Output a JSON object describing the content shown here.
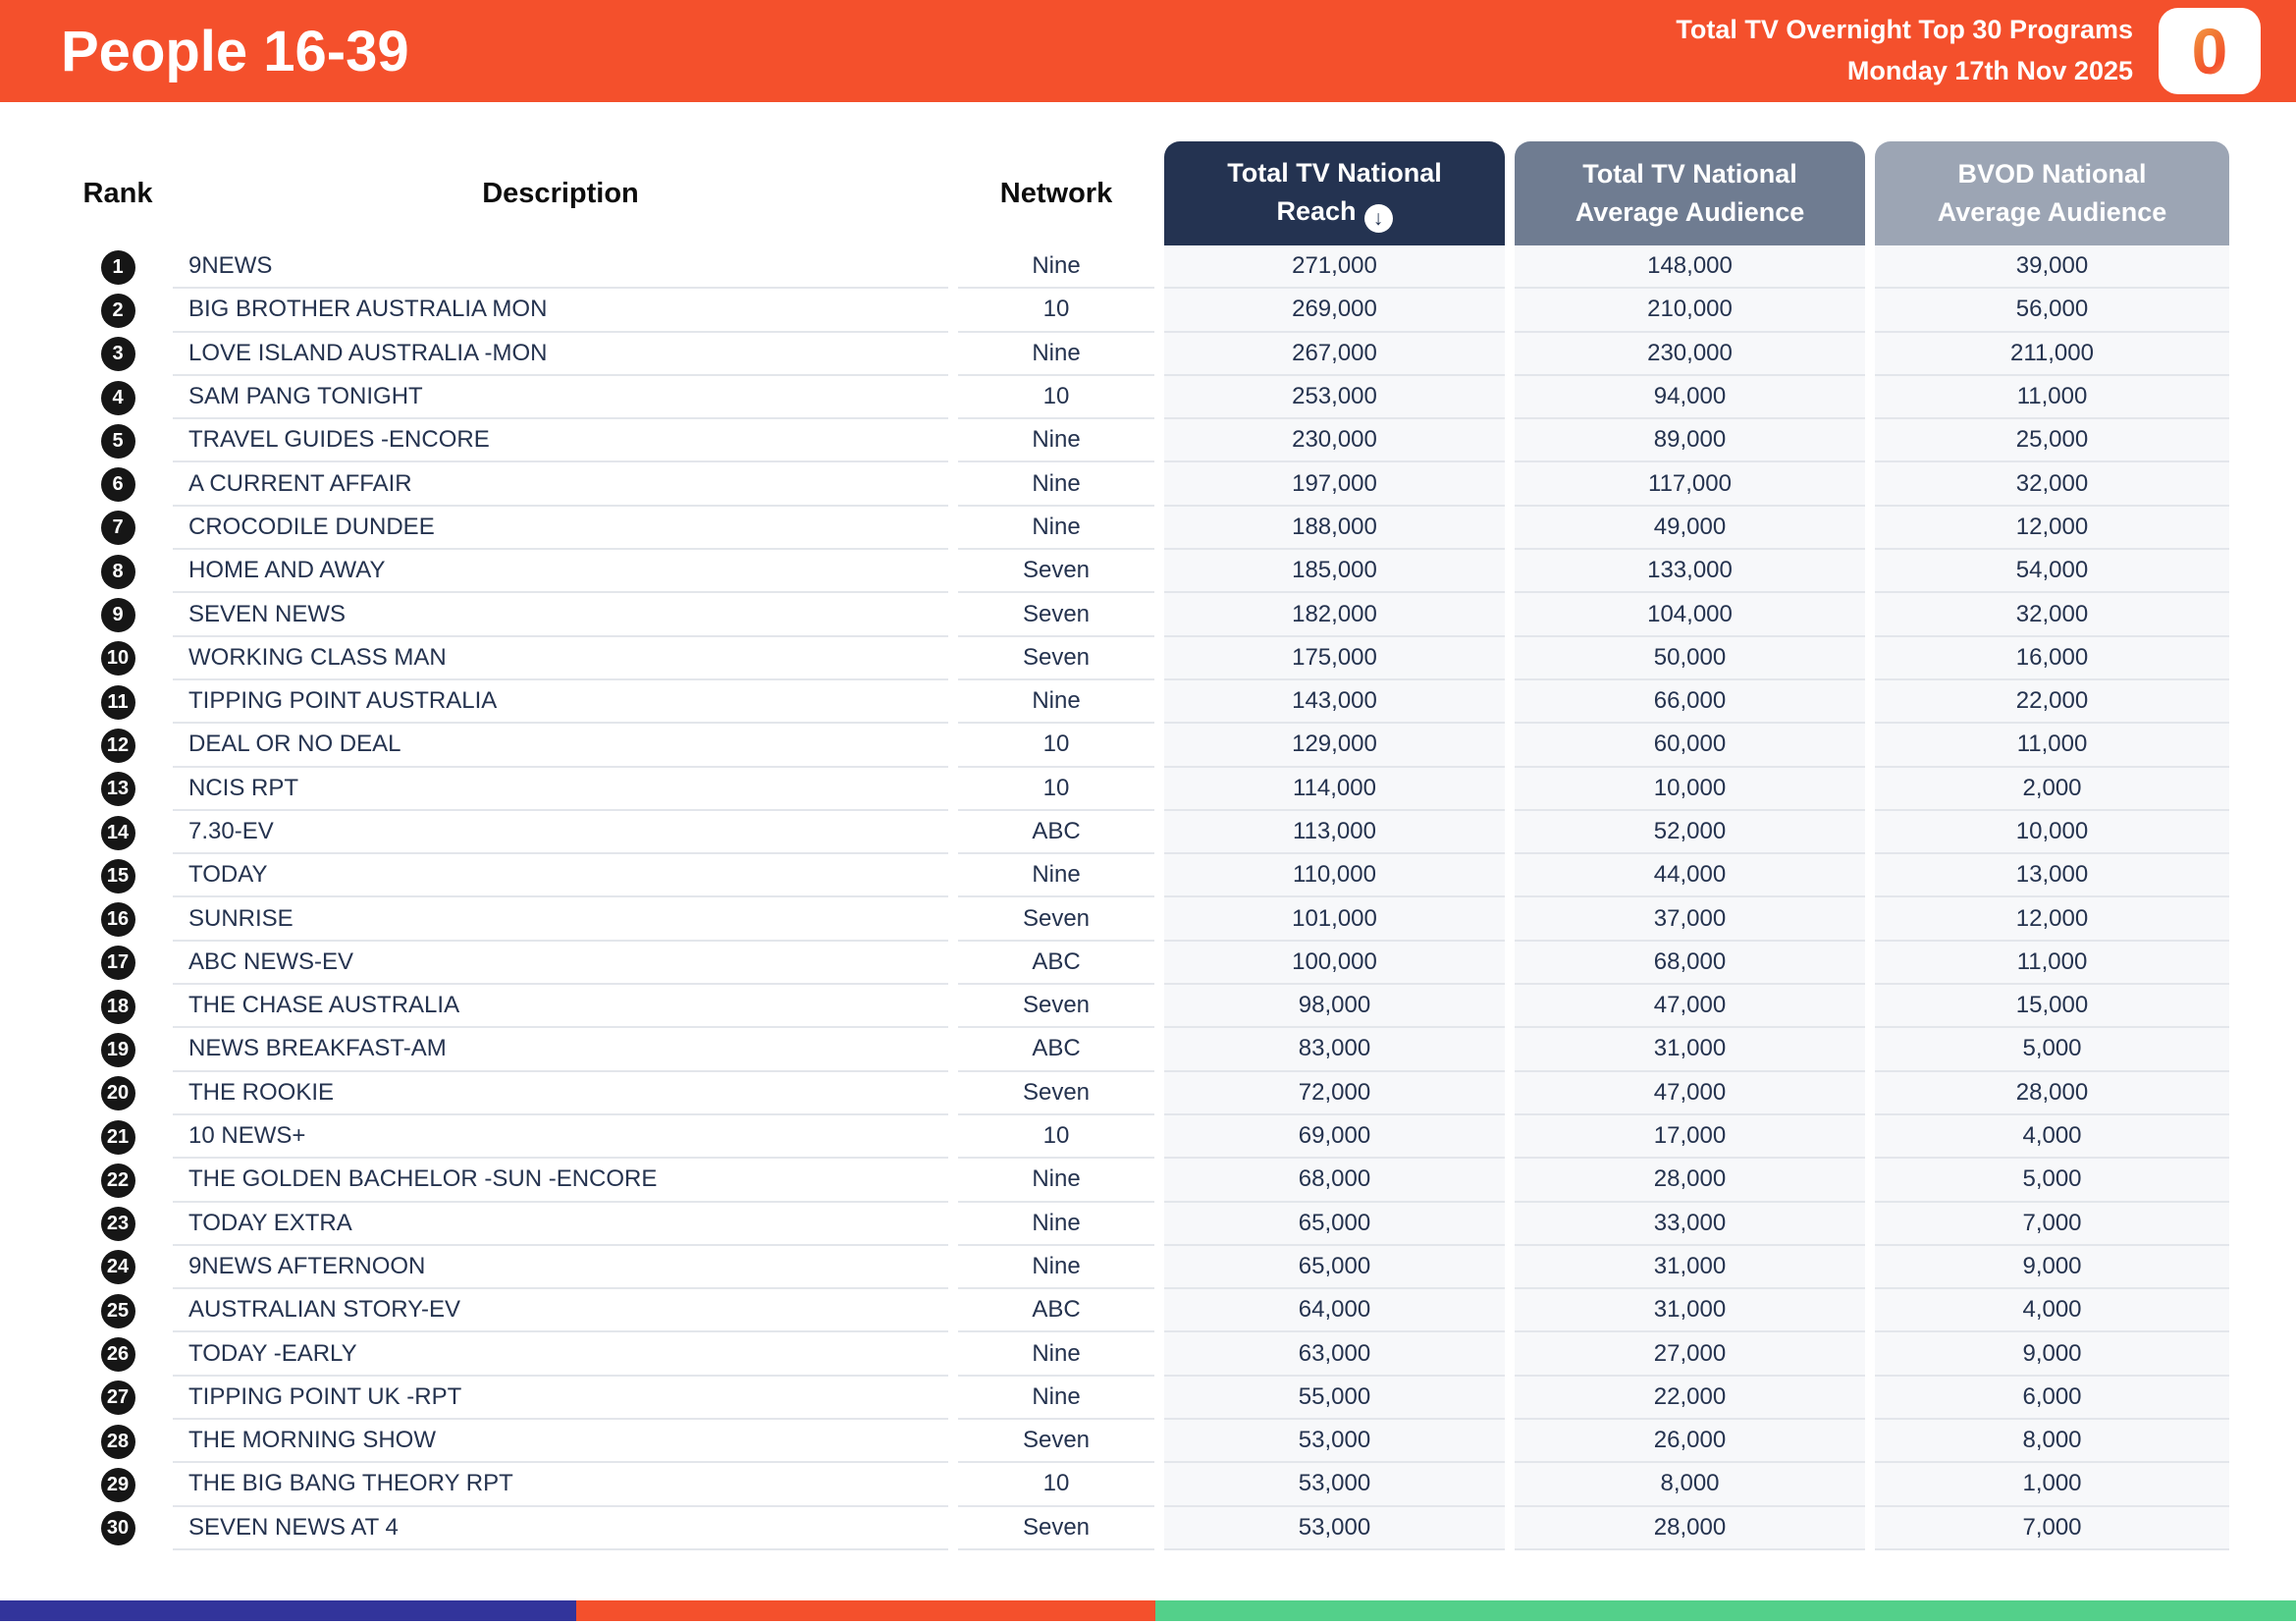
{
  "banner": {
    "title": "People 16-39",
    "subtitle_line1": "Total TV Overnight Top 30 Programs",
    "subtitle_line2": "Monday 17th Nov 2025",
    "logo_glyph": "0",
    "banner_bg": "#F4502C"
  },
  "table": {
    "headers": {
      "rank": "Rank",
      "description": "Description",
      "network": "Network",
      "reach_line1": "Total TV National",
      "reach_line2": "Reach",
      "sort_icon": "↓",
      "avg_line1": "Total TV National",
      "avg_line2": "Average Audience",
      "bvod_line1": "BVOD National",
      "bvod_line2": "Average Audience"
    },
    "header_colors": {
      "reach": "#243351",
      "avg": "#6F7C91",
      "bvod": "#9CA5B4"
    },
    "rows": [
      {
        "rank": "1",
        "description": "9NEWS",
        "network": "Nine",
        "reach": "271,000",
        "avg_audience": "148,000",
        "bvod_audience": "39,000"
      },
      {
        "rank": "2",
        "description": "BIG BROTHER AUSTRALIA MON",
        "network": "10",
        "reach": "269,000",
        "avg_audience": "210,000",
        "bvod_audience": "56,000"
      },
      {
        "rank": "3",
        "description": "LOVE ISLAND AUSTRALIA -MON",
        "network": "Nine",
        "reach": "267,000",
        "avg_audience": "230,000",
        "bvod_audience": "211,000"
      },
      {
        "rank": "4",
        "description": "SAM PANG TONIGHT",
        "network": "10",
        "reach": "253,000",
        "avg_audience": "94,000",
        "bvod_audience": "11,000"
      },
      {
        "rank": "5",
        "description": "TRAVEL GUIDES -ENCORE",
        "network": "Nine",
        "reach": "230,000",
        "avg_audience": "89,000",
        "bvod_audience": "25,000"
      },
      {
        "rank": "6",
        "description": "A CURRENT AFFAIR",
        "network": "Nine",
        "reach": "197,000",
        "avg_audience": "117,000",
        "bvod_audience": "32,000"
      },
      {
        "rank": "7",
        "description": "CROCODILE DUNDEE",
        "network": "Nine",
        "reach": "188,000",
        "avg_audience": "49,000",
        "bvod_audience": "12,000"
      },
      {
        "rank": "8",
        "description": "HOME AND AWAY",
        "network": "Seven",
        "reach": "185,000",
        "avg_audience": "133,000",
        "bvod_audience": "54,000"
      },
      {
        "rank": "9",
        "description": "SEVEN NEWS",
        "network": "Seven",
        "reach": "182,000",
        "avg_audience": "104,000",
        "bvod_audience": "32,000"
      },
      {
        "rank": "10",
        "description": "WORKING CLASS MAN",
        "network": "Seven",
        "reach": "175,000",
        "avg_audience": "50,000",
        "bvod_audience": "16,000"
      },
      {
        "rank": "11",
        "description": "TIPPING POINT AUSTRALIA",
        "network": "Nine",
        "reach": "143,000",
        "avg_audience": "66,000",
        "bvod_audience": "22,000"
      },
      {
        "rank": "12",
        "description": "DEAL OR NO DEAL",
        "network": "10",
        "reach": "129,000",
        "avg_audience": "60,000",
        "bvod_audience": "11,000"
      },
      {
        "rank": "13",
        "description": "NCIS RPT",
        "network": "10",
        "reach": "114,000",
        "avg_audience": "10,000",
        "bvod_audience": "2,000"
      },
      {
        "rank": "14",
        "description": "7.30-EV",
        "network": "ABC",
        "reach": "113,000",
        "avg_audience": "52,000",
        "bvod_audience": "10,000"
      },
      {
        "rank": "15",
        "description": "TODAY",
        "network": "Nine",
        "reach": "110,000",
        "avg_audience": "44,000",
        "bvod_audience": "13,000"
      },
      {
        "rank": "16",
        "description": "SUNRISE",
        "network": "Seven",
        "reach": "101,000",
        "avg_audience": "37,000",
        "bvod_audience": "12,000"
      },
      {
        "rank": "17",
        "description": "ABC NEWS-EV",
        "network": "ABC",
        "reach": "100,000",
        "avg_audience": "68,000",
        "bvod_audience": "11,000"
      },
      {
        "rank": "18",
        "description": "THE CHASE AUSTRALIA",
        "network": "Seven",
        "reach": "98,000",
        "avg_audience": "47,000",
        "bvod_audience": "15,000"
      },
      {
        "rank": "19",
        "description": "NEWS BREAKFAST-AM",
        "network": "ABC",
        "reach": "83,000",
        "avg_audience": "31,000",
        "bvod_audience": "5,000"
      },
      {
        "rank": "20",
        "description": "THE ROOKIE",
        "network": "Seven",
        "reach": "72,000",
        "avg_audience": "47,000",
        "bvod_audience": "28,000"
      },
      {
        "rank": "21",
        "description": "10 NEWS+",
        "network": "10",
        "reach": "69,000",
        "avg_audience": "17,000",
        "bvod_audience": "4,000"
      },
      {
        "rank": "22",
        "description": "THE GOLDEN BACHELOR -SUN -ENCORE",
        "network": "Nine",
        "reach": "68,000",
        "avg_audience": "28,000",
        "bvod_audience": "5,000"
      },
      {
        "rank": "23",
        "description": "TODAY EXTRA",
        "network": "Nine",
        "reach": "65,000",
        "avg_audience": "33,000",
        "bvod_audience": "7,000"
      },
      {
        "rank": "24",
        "description": "9NEWS AFTERNOON",
        "network": "Nine",
        "reach": "65,000",
        "avg_audience": "31,000",
        "bvod_audience": "9,000"
      },
      {
        "rank": "25",
        "description": "AUSTRALIAN STORY-EV",
        "network": "ABC",
        "reach": "64,000",
        "avg_audience": "31,000",
        "bvod_audience": "4,000"
      },
      {
        "rank": "26",
        "description": "TODAY -EARLY",
        "network": "Nine",
        "reach": "63,000",
        "avg_audience": "27,000",
        "bvod_audience": "9,000"
      },
      {
        "rank": "27",
        "description": "TIPPING POINT UK -RPT",
        "network": "Nine",
        "reach": "55,000",
        "avg_audience": "22,000",
        "bvod_audience": "6,000"
      },
      {
        "rank": "28",
        "description": "THE MORNING SHOW",
        "network": "Seven",
        "reach": "53,000",
        "avg_audience": "26,000",
        "bvod_audience": "8,000"
      },
      {
        "rank": "29",
        "description": "THE BIG BANG THEORY RPT",
        "network": "10",
        "reach": "53,000",
        "avg_audience": "8,000",
        "bvod_audience": "1,000"
      },
      {
        "rank": "30",
        "description": "SEVEN NEWS AT 4",
        "network": "Seven",
        "reach": "53,000",
        "avg_audience": "28,000",
        "bvod_audience": "7,000"
      }
    ]
  },
  "footer": {
    "segments": [
      {
        "name": "blue-segment",
        "color": "#32349B",
        "width_pct": 25.1
      },
      {
        "name": "orange-segment",
        "color": "#F4502C",
        "width_pct": 25.2
      },
      {
        "name": "green-segment",
        "color": "#53D08A",
        "width_pct": 49.7
      }
    ]
  }
}
